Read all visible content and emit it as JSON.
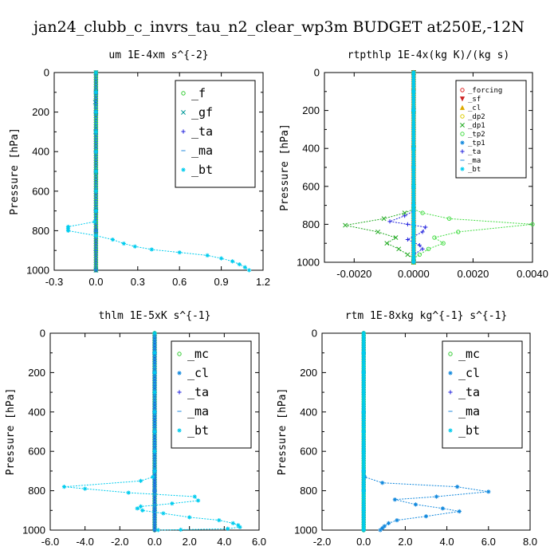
{
  "figure_title": "jan24_clubb_c_invrs_tau_n2_clear_wp3m  BUDGET at250E,-12N",
  "colors": {
    "f": "#33cc33",
    "gf": "#009999",
    "ta": "#2222dd",
    "ma": "#2288dd",
    "bt": "#00ccee",
    "mc": "#33cc33",
    "cl": "#1188dd",
    "forcing": "#dd2222",
    "sf": "#cc2222",
    "cl_r": "#ddaa00",
    "dp2": "#ddcc00",
    "dp1": "#22aa22",
    "tp2": "#44dd44",
    "tp1": "#1188dd"
  },
  "chart_data": [
    {
      "type": "line",
      "title": "um  1E-4xm s^{-2}",
      "xlabel": "",
      "ylabel": "Pressure [hPa]",
      "xlim": [
        -0.3,
        1.2
      ],
      "ylim": [
        1000,
        0
      ],
      "xticks": [
        "-0.3",
        "0.0",
        "0.3",
        "0.6",
        "0.9",
        "1.2"
      ],
      "yticks": [
        "0",
        "200",
        "400",
        "600",
        "800",
        "1000"
      ],
      "legend_placement": "top-right",
      "legend_size": "big",
      "series": [
        {
          "name": "_f",
          "color_key": "f",
          "marker": "o",
          "x": [
            0,
            0,
            0,
            0,
            0,
            0,
            0,
            0,
            0,
            0,
            0
          ],
          "y": [
            0,
            100,
            200,
            300,
            400,
            500,
            600,
            700,
            800,
            900,
            1000
          ]
        },
        {
          "name": "_gf",
          "color_key": "gf",
          "marker": "x",
          "x": [
            0.0,
            0.0,
            -0.005,
            0.0,
            -0.002,
            0.0,
            0.0,
            0.0,
            0.0
          ],
          "y": [
            0,
            100,
            150,
            200,
            300,
            500,
            700,
            800,
            1000
          ]
        },
        {
          "name": "_ta",
          "color_key": "ta",
          "marker": "+",
          "x": [
            0,
            0,
            0,
            0,
            0,
            0,
            0,
            0,
            0,
            0,
            0
          ],
          "y": [
            0,
            100,
            200,
            300,
            400,
            500,
            600,
            700,
            800,
            900,
            1000
          ]
        },
        {
          "name": "_ma",
          "color_key": "ma",
          "marker": "-",
          "x": [
            0,
            0,
            0,
            0,
            0,
            0,
            0,
            0,
            0,
            0,
            0
          ],
          "y": [
            0,
            100,
            200,
            300,
            400,
            500,
            600,
            700,
            800,
            900,
            1000
          ]
        },
        {
          "name": "_bt",
          "color_key": "bt",
          "marker": "*",
          "x": [
            0,
            0,
            0,
            0,
            0,
            0,
            0,
            0,
            -0.01,
            -0.2,
            -0.2,
            -0.2,
            0.0,
            0.12,
            0.2,
            0.28,
            0.4,
            0.6,
            0.8,
            0.9,
            0.98,
            1.03,
            1.07,
            1.1
          ],
          "y": [
            0,
            100,
            200,
            300,
            400,
            500,
            600,
            700,
            755,
            780,
            790,
            800,
            825,
            845,
            865,
            880,
            895,
            910,
            925,
            940,
            955,
            970,
            985,
            1000
          ]
        }
      ]
    },
    {
      "type": "line",
      "title": "rtpthlp  1E-4x(kg K)/(kg s)",
      "xlabel": "",
      "ylabel": "Pressure [hPa]",
      "xlim": [
        -0.003,
        0.004
      ],
      "ylim": [
        1000,
        0
      ],
      "xticks": [
        "-0.0020",
        "0.0000",
        "0.0020",
        "0.0040"
      ],
      "xtick_values": [
        -0.002,
        0.0,
        0.002,
        0.004
      ],
      "yticks": [
        "0",
        "200",
        "400",
        "600",
        "800",
        "1000"
      ],
      "legend_placement": "top-right",
      "legend_size": "small",
      "series": [
        {
          "name": "_forcing",
          "color_key": "forcing",
          "marker": "o",
          "x": [
            0,
            0,
            0,
            0,
            0,
            0,
            0,
            0,
            0,
            0,
            0
          ],
          "y": [
            0,
            100,
            200,
            300,
            400,
            500,
            600,
            700,
            800,
            900,
            1000
          ]
        },
        {
          "name": "_sf",
          "color_key": "sf",
          "marker": "v",
          "x": [
            0,
            0,
            0,
            0,
            0,
            0,
            0,
            0,
            0,
            0,
            0
          ],
          "y": [
            0,
            100,
            200,
            300,
            400,
            500,
            600,
            700,
            800,
            900,
            1000
          ]
        },
        {
          "name": "_cl",
          "color_key": "cl_r",
          "marker": "^",
          "x": [
            0,
            0,
            0,
            0,
            0,
            0,
            0,
            0,
            0,
            0,
            0
          ],
          "y": [
            0,
            100,
            200,
            300,
            400,
            500,
            600,
            700,
            800,
            900,
            1000
          ]
        },
        {
          "name": "_dp2",
          "color_key": "dp2",
          "marker": "o",
          "x": [
            0,
            0,
            0,
            0,
            0,
            0,
            0,
            0,
            0,
            0,
            0
          ],
          "y": [
            0,
            100,
            200,
            300,
            400,
            500,
            600,
            700,
            800,
            900,
            1000
          ]
        },
        {
          "name": "_dp1",
          "color_key": "dp1",
          "marker": "x",
          "x": [
            0,
            0,
            0,
            0,
            0.0,
            -0.0003,
            -0.001,
            -0.0023,
            -0.0012,
            -0.0006,
            -0.0009,
            -0.0005,
            -0.0002,
            0.0,
            0
          ],
          "y": [
            0,
            200,
            400,
            600,
            720,
            740,
            770,
            805,
            840,
            870,
            900,
            930,
            960,
            980,
            1000
          ]
        },
        {
          "name": "_tp2",
          "color_key": "tp2",
          "marker": "o",
          "x": [
            0,
            0,
            0,
            0,
            0.0,
            0.0003,
            0.0012,
            0.004,
            0.0015,
            0.0007,
            0.001,
            0.0005,
            0.0002,
            0.0,
            0
          ],
          "y": [
            0,
            200,
            400,
            600,
            720,
            740,
            770,
            800,
            840,
            870,
            900,
            930,
            960,
            980,
            1000
          ]
        },
        {
          "name": "_tp1",
          "color_key": "tp1",
          "marker": "*",
          "x": [
            0,
            0,
            0,
            0,
            0,
            0,
            0,
            0,
            0,
            0,
            0
          ],
          "y": [
            0,
            100,
            200,
            300,
            400,
            500,
            600,
            700,
            800,
            900,
            1000
          ]
        },
        {
          "name": "_ta",
          "color_key": "ta",
          "marker": "+",
          "x": [
            0,
            0,
            0,
            0,
            0.0,
            -0.0003,
            -0.0008,
            -0.0002,
            0.0004,
            0.0003,
            -0.0002,
            0.0002,
            0.0003,
            0.0,
            0
          ],
          "y": [
            0,
            200,
            400,
            600,
            730,
            755,
            785,
            800,
            815,
            840,
            880,
            910,
            930,
            960,
            1000
          ]
        },
        {
          "name": "_ma",
          "color_key": "ma",
          "marker": "-",
          "x": [
            0,
            0,
            0,
            0,
            0,
            0,
            0,
            0,
            0,
            0,
            0
          ],
          "y": [
            0,
            100,
            200,
            300,
            400,
            500,
            600,
            700,
            800,
            900,
            1000
          ]
        },
        {
          "name": "_bt",
          "color_key": "bt",
          "marker": "*",
          "x": [
            0,
            0,
            0,
            0,
            0,
            0,
            0,
            0,
            0,
            0,
            0
          ],
          "y": [
            0,
            100,
            200,
            300,
            400,
            500,
            600,
            700,
            800,
            900,
            1000
          ]
        }
      ]
    },
    {
      "type": "line",
      "title": "thlm  1E-5xK s^{-1}",
      "xlabel": "",
      "ylabel": "Pressure [hPa]",
      "xlim": [
        -6.0,
        6.0
      ],
      "ylim": [
        1000,
        0
      ],
      "xticks": [
        "-6.0",
        "-4.0",
        "-2.0",
        "0.0",
        "2.0",
        "4.0",
        "6.0"
      ],
      "yticks": [
        "0",
        "200",
        "400",
        "600",
        "800",
        "1000"
      ],
      "legend_placement": "top-right",
      "legend_size": "big",
      "series": [
        {
          "name": "_mc",
          "color_key": "mc",
          "marker": "o",
          "x": [
            0,
            0,
            0,
            0,
            0,
            0,
            0,
            0,
            0,
            0,
            0
          ],
          "y": [
            0,
            100,
            200,
            300,
            400,
            500,
            600,
            700,
            800,
            900,
            1000
          ]
        },
        {
          "name": "_cl",
          "color_key": "cl",
          "marker": "*",
          "x": [
            0,
            0,
            0,
            0,
            0,
            0,
            0,
            0,
            0,
            0,
            0
          ],
          "y": [
            0,
            100,
            200,
            300,
            400,
            500,
            600,
            700,
            800,
            900,
            1000
          ]
        },
        {
          "name": "_ta",
          "color_key": "ta",
          "marker": "+",
          "x": [
            0,
            0,
            0,
            0,
            0,
            0,
            0,
            0,
            0,
            0,
            0
          ],
          "y": [
            0,
            100,
            200,
            300,
            400,
            500,
            600,
            700,
            800,
            900,
            1000
          ]
        },
        {
          "name": "_ma",
          "color_key": "ma",
          "marker": "-",
          "x": [
            0,
            0,
            0,
            0,
            0,
            0,
            0,
            0,
            0,
            0,
            0
          ],
          "y": [
            0,
            100,
            200,
            300,
            400,
            500,
            600,
            700,
            800,
            900,
            1000
          ]
        },
        {
          "name": "_bt",
          "color_key": "bt",
          "marker": "*",
          "x": [
            0,
            0,
            0,
            0,
            0,
            0,
            0,
            0,
            -0.1,
            -0.8,
            -5.2,
            -4.0,
            -1.5,
            2.3,
            2.5,
            1.0,
            -0.8,
            -1.0,
            -0.7,
            0.5,
            2.0,
            3.7,
            4.5,
            4.8,
            4.9,
            4.2,
            1.5,
            0.2
          ],
          "y": [
            0,
            100,
            200,
            300,
            400,
            500,
            600,
            700,
            730,
            750,
            780,
            790,
            810,
            830,
            850,
            865,
            880,
            890,
            900,
            915,
            935,
            950,
            965,
            975,
            985,
            993,
            998,
            1000
          ]
        }
      ]
    },
    {
      "type": "line",
      "title": "rtm  1E-8xkg kg^{-1} s^{-1}",
      "xlabel": "",
      "ylabel": "Pressure [hPa]",
      "xlim": [
        -2.0,
        8.0
      ],
      "ylim": [
        1000,
        0
      ],
      "xticks": [
        "-2.0",
        "0.0",
        "2.0",
        "4.0",
        "6.0",
        "8.0"
      ],
      "yticks": [
        "0",
        "200",
        "400",
        "600",
        "800",
        "1000"
      ],
      "legend_placement": "top-right",
      "legend_size": "big",
      "series": [
        {
          "name": "_mc",
          "color_key": "mc",
          "marker": "o",
          "x": [
            0,
            0,
            0,
            0,
            0,
            0,
            0,
            0,
            0,
            0,
            0
          ],
          "y": [
            0,
            100,
            200,
            300,
            400,
            500,
            600,
            700,
            800,
            900,
            1000
          ]
        },
        {
          "name": "_cl",
          "color_key": "cl",
          "marker": "*",
          "x": [
            0,
            0,
            0,
            0,
            0,
            0,
            0,
            0,
            0.05,
            0.9,
            4.5,
            6.0,
            3.5,
            1.5,
            2.5,
            3.8,
            4.6,
            3.0,
            1.6,
            1.2,
            1.0,
            0.9,
            0.8
          ],
          "y": [
            0,
            100,
            200,
            300,
            400,
            500,
            600,
            700,
            730,
            760,
            780,
            805,
            830,
            845,
            870,
            890,
            905,
            930,
            950,
            965,
            980,
            990,
            1000
          ]
        },
        {
          "name": "_ta",
          "color_key": "ta",
          "marker": "+",
          "x": [
            0,
            0,
            0,
            0,
            0,
            0,
            0,
            0,
            0,
            0,
            0
          ],
          "y": [
            0,
            100,
            200,
            300,
            400,
            500,
            600,
            700,
            800,
            900,
            1000
          ]
        },
        {
          "name": "_ma",
          "color_key": "ma",
          "marker": "-",
          "x": [
            0,
            0,
            0,
            0,
            0,
            0,
            0,
            0,
            0,
            0,
            0
          ],
          "y": [
            0,
            100,
            200,
            300,
            400,
            500,
            600,
            700,
            800,
            900,
            1000
          ]
        },
        {
          "name": "_bt",
          "color_key": "bt",
          "marker": "*",
          "x": [
            0,
            0,
            0,
            0,
            0,
            0,
            0,
            0,
            0,
            0,
            0
          ],
          "y": [
            0,
            100,
            200,
            300,
            400,
            500,
            600,
            700,
            800,
            900,
            1000
          ]
        }
      ]
    }
  ]
}
